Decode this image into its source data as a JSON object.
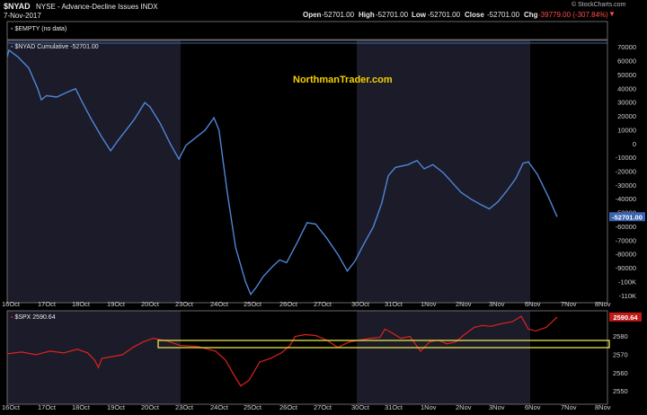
{
  "header": {
    "symbol": "$NYAD",
    "description": "NYSE - Advance-Decline Issues  INDX",
    "date": "7-Nov-2017",
    "source": "© StockCharts.com",
    "open_label": "Open",
    "open": "-52701.00",
    "high_label": "High",
    "high": "-52701.00",
    "low_label": "Low",
    "low": "-52701.00",
    "close_label": "Close",
    "close": "-52701.00",
    "chg_label": "Chg",
    "chg": "-39779.00 (-307.84%)"
  },
  "legend": {
    "empty": "$EMPTY (no data)",
    "nyad": "$NYAD Cumulative -52701.00",
    "spx": "$SPX 2590.64"
  },
  "watermark": "NorthmanTrader.com",
  "colors": {
    "nyad_line": "#4f86d6",
    "spx_line": "#e0231c",
    "highlight": "#e8e34a",
    "shade": "#1b1b2a",
    "last_price_box": "#3b63b0"
  },
  "chart_data": [
    {
      "type": "line",
      "name": "$NYAD Cumulative",
      "x_ticks": [
        "16Oct",
        "17Oct",
        "18Oct",
        "19Oct",
        "20Oct",
        "23Oct",
        "24Oct",
        "25Oct",
        "26Oct",
        "27Oct",
        "30Oct",
        "31Oct",
        "1Nov",
        "2Nov",
        "3Nov",
        "6Nov",
        "7Nov",
        "8Nov"
      ],
      "y_ticks": [
        "70000",
        "60000",
        "50000",
        "40000",
        "30000",
        "20000",
        "10000",
        "0",
        "-10000",
        "-20000",
        "-30000",
        "-40000",
        "-50000",
        "-60000",
        "-70000",
        "-80000",
        "-90000",
        "-100K",
        "-110K"
      ],
      "ylim": [
        -115000,
        75000
      ],
      "last_value_label": "-52701.00",
      "points": [
        [
          0,
          63000
        ],
        [
          0.05,
          68000
        ],
        [
          0.3,
          63000
        ],
        [
          0.6,
          55000
        ],
        [
          0.85,
          40000
        ],
        [
          0.95,
          32000
        ],
        [
          1.1,
          35000
        ],
        [
          1.4,
          34000
        ],
        [
          1.75,
          38000
        ],
        [
          1.95,
          40000
        ],
        [
          2.15,
          30000
        ],
        [
          2.4,
          18000
        ],
        [
          2.7,
          5000
        ],
        [
          2.95,
          -5000
        ],
        [
          3.15,
          2000
        ],
        [
          3.4,
          10000
        ],
        [
          3.65,
          18000
        ],
        [
          3.95,
          30000
        ],
        [
          4.1,
          27000
        ],
        [
          4.4,
          15000
        ],
        [
          4.7,
          0
        ],
        [
          4.95,
          -11000
        ],
        [
          5.15,
          -1000
        ],
        [
          5.45,
          5000
        ],
        [
          5.7,
          10000
        ],
        [
          5.95,
          19000
        ],
        [
          6.1,
          10000
        ],
        [
          6.35,
          -35000
        ],
        [
          6.6,
          -75000
        ],
        [
          6.9,
          -100000
        ],
        [
          7.05,
          -109000
        ],
        [
          7.2,
          -104000
        ],
        [
          7.4,
          -96000
        ],
        [
          7.65,
          -89000
        ],
        [
          7.85,
          -84000
        ],
        [
          8.05,
          -86000
        ],
        [
          8.35,
          -72000
        ],
        [
          8.65,
          -57000
        ],
        [
          8.9,
          -58000
        ],
        [
          9.2,
          -68000
        ],
        [
          9.5,
          -80000
        ],
        [
          9.75,
          -92000
        ],
        [
          9.95,
          -85000
        ],
        [
          10.2,
          -73000
        ],
        [
          10.5,
          -60000
        ],
        [
          10.75,
          -43000
        ],
        [
          10.95,
          -23000
        ],
        [
          11.15,
          -17000
        ],
        [
          11.5,
          -15000
        ],
        [
          11.75,
          -12000
        ],
        [
          11.95,
          -18000
        ],
        [
          12.2,
          -15000
        ],
        [
          12.5,
          -21000
        ],
        [
          12.75,
          -28000
        ],
        [
          13.0,
          -35000
        ],
        [
          13.3,
          -40000
        ],
        [
          13.6,
          -44000
        ],
        [
          13.85,
          -47000
        ],
        [
          14.1,
          -42000
        ],
        [
          14.35,
          -34000
        ],
        [
          14.6,
          -25000
        ],
        [
          14.8,
          -14000
        ],
        [
          14.95,
          -13000
        ],
        [
          15.2,
          -22000
        ],
        [
          15.5,
          -38000
        ],
        [
          15.75,
          -52701
        ]
      ]
    },
    {
      "type": "line",
      "name": "$SPX",
      "y_ticks": [
        "2580",
        "2570",
        "2560",
        "2550"
      ],
      "ylim": [
        2543,
        2594
      ],
      "last_value_label": "2590.64",
      "points": [
        [
          0,
          2570.5
        ],
        [
          0.4,
          2571.5
        ],
        [
          0.8,
          2570
        ],
        [
          1.2,
          2572
        ],
        [
          1.6,
          2571
        ],
        [
          2.0,
          2573
        ],
        [
          2.3,
          2571
        ],
        [
          2.5,
          2567
        ],
        [
          2.6,
          2563
        ],
        [
          2.7,
          2568
        ],
        [
          3.0,
          2569
        ],
        [
          3.3,
          2570
        ],
        [
          3.6,
          2574
        ],
        [
          3.9,
          2577
        ],
        [
          4.2,
          2579
        ],
        [
          4.6,
          2577.5
        ],
        [
          5.0,
          2575
        ],
        [
          5.5,
          2574.5
        ],
        [
          6.0,
          2572
        ],
        [
          6.3,
          2567
        ],
        [
          6.55,
          2559
        ],
        [
          6.75,
          2553
        ],
        [
          7.0,
          2556
        ],
        [
          7.3,
          2566
        ],
        [
          7.6,
          2568
        ],
        [
          7.9,
          2571
        ],
        [
          8.15,
          2575
        ],
        [
          8.3,
          2580
        ],
        [
          8.6,
          2581
        ],
        [
          8.9,
          2580.5
        ],
        [
          9.2,
          2578
        ],
        [
          9.5,
          2574
        ],
        [
          9.8,
          2577
        ],
        [
          10.1,
          2578
        ],
        [
          10.4,
          2579
        ],
        [
          10.7,
          2579.5
        ],
        [
          10.85,
          2584
        ],
        [
          11.05,
          2582
        ],
        [
          11.3,
          2579
        ],
        [
          11.55,
          2580
        ],
        [
          11.85,
          2572
        ],
        [
          12.1,
          2577
        ],
        [
          12.35,
          2578
        ],
        [
          12.6,
          2576
        ],
        [
          12.85,
          2577
        ],
        [
          13.1,
          2581
        ],
        [
          13.4,
          2585
        ],
        [
          13.65,
          2586
        ],
        [
          13.9,
          2585.5
        ],
        [
          14.2,
          2587
        ],
        [
          14.5,
          2588
        ],
        [
          14.75,
          2591
        ],
        [
          14.95,
          2584
        ],
        [
          15.15,
          2583
        ],
        [
          15.45,
          2585
        ],
        [
          15.75,
          2590.64
        ]
      ]
    }
  ]
}
